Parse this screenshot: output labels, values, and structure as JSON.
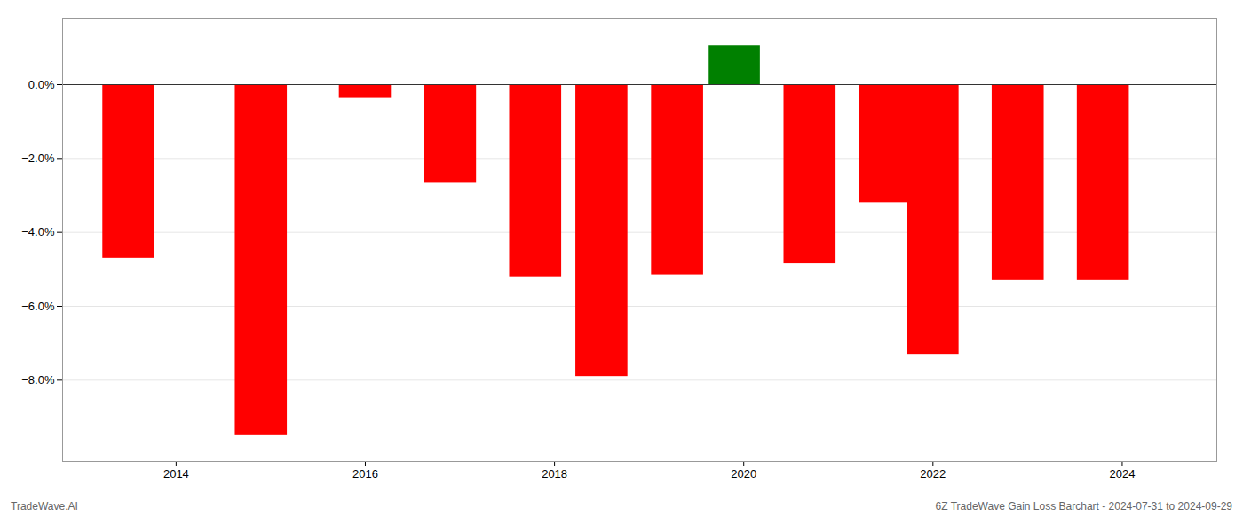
{
  "chart_data": {
    "type": "bar",
    "x": [
      2013.5,
      2014.9,
      2016.0,
      2016.9,
      2017.8,
      2018.5,
      2019.3,
      2019.9,
      2020.7,
      2021.5,
      2022.0,
      2022.9,
      2023.8
    ],
    "values": [
      -4.7,
      -9.5,
      -0.35,
      -2.65,
      -5.2,
      -7.9,
      -5.15,
      1.05,
      -4.85,
      -3.2,
      -7.3,
      -5.3,
      -5.3
    ],
    "colors": [
      "#ff0000",
      "#ff0000",
      "#ff0000",
      "#ff0000",
      "#ff0000",
      "#ff0000",
      "#ff0000",
      "#008000",
      "#ff0000",
      "#ff0000",
      "#ff0000",
      "#ff0000",
      "#ff0000"
    ],
    "xlim": [
      2012.8,
      2025.0
    ],
    "ylim": [
      -10.2,
      1.8
    ],
    "xticks": [
      2014,
      2016,
      2018,
      2020,
      2022,
      2024
    ],
    "yticks": [
      {
        "value": 0.0,
        "label": "0.0%"
      },
      {
        "value": -2.0,
        "label": "−2.0%"
      },
      {
        "value": -4.0,
        "label": "−4.0%"
      },
      {
        "value": -6.0,
        "label": "−6.0%"
      },
      {
        "value": -8.0,
        "label": "−8.0%"
      }
    ],
    "grid": true,
    "annotations": [
      "TradeWave.AI",
      "6Z TradeWave Gain Loss Barchart - 2024-07-31 to 2024-09-29"
    ]
  }
}
